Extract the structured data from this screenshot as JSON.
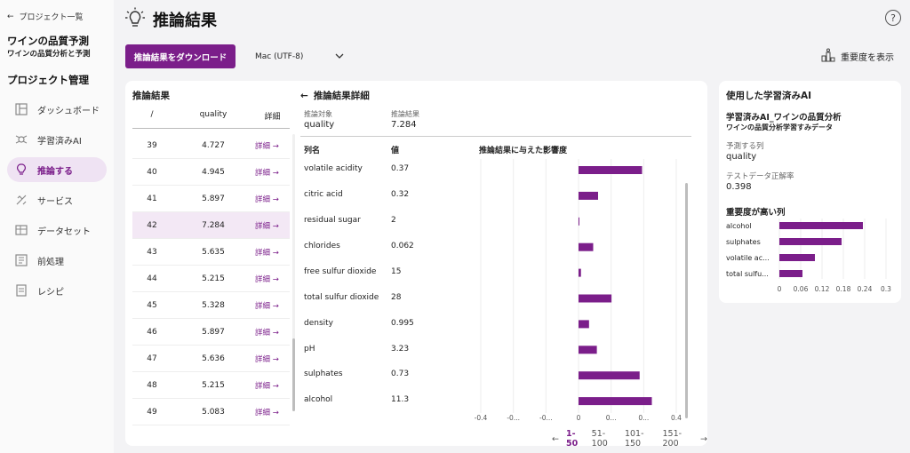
{
  "sidebar": {
    "back_label": "プロジェクト一覧",
    "project_title": "ワインの品質予測",
    "project_subtitle": "ワインの品質分析と予測",
    "section_title": "プロジェクト管理",
    "items": [
      {
        "label": "ダッシュボード",
        "icon": "dashboard-icon"
      },
      {
        "label": "学習済みAI",
        "icon": "model-icon"
      },
      {
        "label": "推論する",
        "icon": "lightbulb-icon",
        "active": true
      },
      {
        "label": "サービス",
        "icon": "service-icon"
      },
      {
        "label": "データセット",
        "icon": "dataset-icon"
      },
      {
        "label": "前処理",
        "icon": "preprocess-icon"
      },
      {
        "label": "レシピ",
        "icon": "recipe-icon"
      }
    ]
  },
  "header": {
    "title": "推論結果",
    "help_label": "?",
    "download_label": "推論結果をダウンロード",
    "encoding_value": "Mac (UTF-8)",
    "importance_label": "重要度を表示"
  },
  "results": {
    "title": "推論結果",
    "col_id": "/",
    "col_quality": "quality",
    "col_detail": "詳細",
    "detail_link": "詳細 →",
    "rows": [
      {
        "id": "39",
        "quality": "4.727"
      },
      {
        "id": "40",
        "quality": "4.945"
      },
      {
        "id": "41",
        "quality": "5.897"
      },
      {
        "id": "42",
        "quality": "7.284",
        "selected": true
      },
      {
        "id": "43",
        "quality": "5.635"
      },
      {
        "id": "44",
        "quality": "5.215"
      },
      {
        "id": "45",
        "quality": "5.328"
      },
      {
        "id": "46",
        "quality": "5.897"
      },
      {
        "id": "47",
        "quality": "5.636"
      },
      {
        "id": "48",
        "quality": "5.215"
      },
      {
        "id": "49",
        "quality": "5.083"
      }
    ]
  },
  "detail": {
    "title": "推論結果詳細",
    "target_label": "推論対象",
    "target_value": "quality",
    "result_label": "推論結果",
    "result_value": "7.284",
    "col_name": "列名",
    "col_value": "値",
    "col_influence": "推論結果に与えた影響度",
    "features": [
      {
        "name": "volatile acidity",
        "value": "0.37",
        "influence": 0.26
      },
      {
        "name": "citric acid",
        "value": "0.32",
        "influence": 0.08
      },
      {
        "name": "residual sugar",
        "value": "2",
        "influence": 0.003
      },
      {
        "name": "chlorides",
        "value": "0.062",
        "influence": 0.06
      },
      {
        "name": "free sulfur dioxide",
        "value": "15",
        "influence": 0.01
      },
      {
        "name": "total sulfur dioxide",
        "value": "28",
        "influence": 0.135
      },
      {
        "name": "density",
        "value": "0.995",
        "influence": 0.043
      },
      {
        "name": "pH",
        "value": "3.23",
        "influence": 0.075
      },
      {
        "name": "sulphates",
        "value": "0.73",
        "influence": 0.25
      },
      {
        "name": "alcohol",
        "value": "11.3",
        "influence": 0.3
      }
    ],
    "axis_ticks": [
      "-0.4",
      "-0...",
      "-0...",
      "0",
      "0...",
      "0...",
      "0.4"
    ],
    "xlim": [
      -0.4,
      0.4
    ]
  },
  "pager": {
    "prev": "←",
    "pages": [
      "1-50",
      "51-100",
      "101-150",
      "151-200"
    ],
    "next": "→"
  },
  "model_panel": {
    "title": "使用した学習済みAI",
    "model_name": "学習済みAI_ワインの品質分析",
    "model_sub": "ワインの品質分析学習すみデータ",
    "predict_label": "予測する列",
    "predict_value": "quality",
    "acc_label": "テストデータ正解率",
    "acc_value": "0.398",
    "importance_title": "重要度が高い列"
  },
  "chart_data": [
    {
      "type": "bar",
      "orientation": "horizontal",
      "categories": [
        "volatile acidity",
        "citric acid",
        "residual sugar",
        "chlorides",
        "free sulfur dioxide",
        "total sulfur dioxide",
        "density",
        "pH",
        "sulphates",
        "alcohol"
      ],
      "values": [
        0.26,
        0.08,
        0.003,
        0.06,
        0.01,
        0.135,
        0.043,
        0.075,
        0.25,
        0.3
      ],
      "title": "推論結果に与えた影響度",
      "xlim": [
        -0.4,
        0.4
      ],
      "color": "#7b1e8a"
    },
    {
      "type": "bar",
      "orientation": "horizontal",
      "categories": [
        "alcohol",
        "sulphates",
        "volatile ac...",
        "total sulfu..."
      ],
      "values": [
        0.235,
        0.175,
        0.1,
        0.065
      ],
      "title": "重要度が高い列",
      "xticks": [
        "0",
        "0.06",
        "0.12",
        "0.18",
        "0.24",
        "0.3"
      ],
      "xlim": [
        0,
        0.3
      ],
      "color": "#7b1e8a"
    }
  ]
}
